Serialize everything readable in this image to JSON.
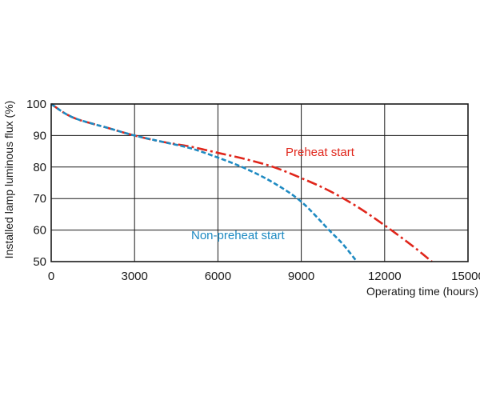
{
  "chart_data": {
    "type": "line",
    "title": "",
    "xlabel": "Operating time (hours)",
    "ylabel": "Installed lamp luminous flux  (%)",
    "xlim": [
      0,
      15000
    ],
    "ylim": [
      50,
      100
    ],
    "x_ticks": [
      0,
      3000,
      6000,
      9000,
      12000,
      15000
    ],
    "x_tick_labels": [
      "0",
      "3000",
      "6000",
      "9000",
      "12000",
      "15000"
    ],
    "y_ticks": [
      50,
      60,
      70,
      80,
      90,
      100
    ],
    "y_tick_labels": [
      "50",
      "60",
      "70",
      "80",
      "90",
      "100"
    ],
    "grid": true,
    "legend": "inline labels",
    "series": [
      {
        "name": "Preheat start",
        "color": "#e0261b",
        "line_style": "dash-dot",
        "x": [
          0,
          500,
          1000,
          2000,
          3000,
          4000,
          5000,
          6000,
          7000,
          8000,
          9000,
          10000,
          11000,
          12000,
          13000,
          13700
        ],
        "values": [
          100,
          97,
          95,
          92.5,
          90,
          88,
          86.5,
          84.5,
          82.5,
          80,
          76.5,
          72.5,
          67.5,
          61.5,
          55,
          50
        ]
      },
      {
        "name": "Non-preheat start",
        "color": "#1e8ac2",
        "line_style": "dashed",
        "x": [
          0,
          500,
          1000,
          2000,
          3000,
          4000,
          5000,
          6000,
          7000,
          8000,
          9000,
          10000,
          10500,
          11000
        ],
        "values": [
          100,
          97,
          95,
          92.5,
          90,
          88,
          86,
          83,
          79.5,
          75,
          69,
          60,
          55.5,
          50
        ]
      }
    ]
  }
}
